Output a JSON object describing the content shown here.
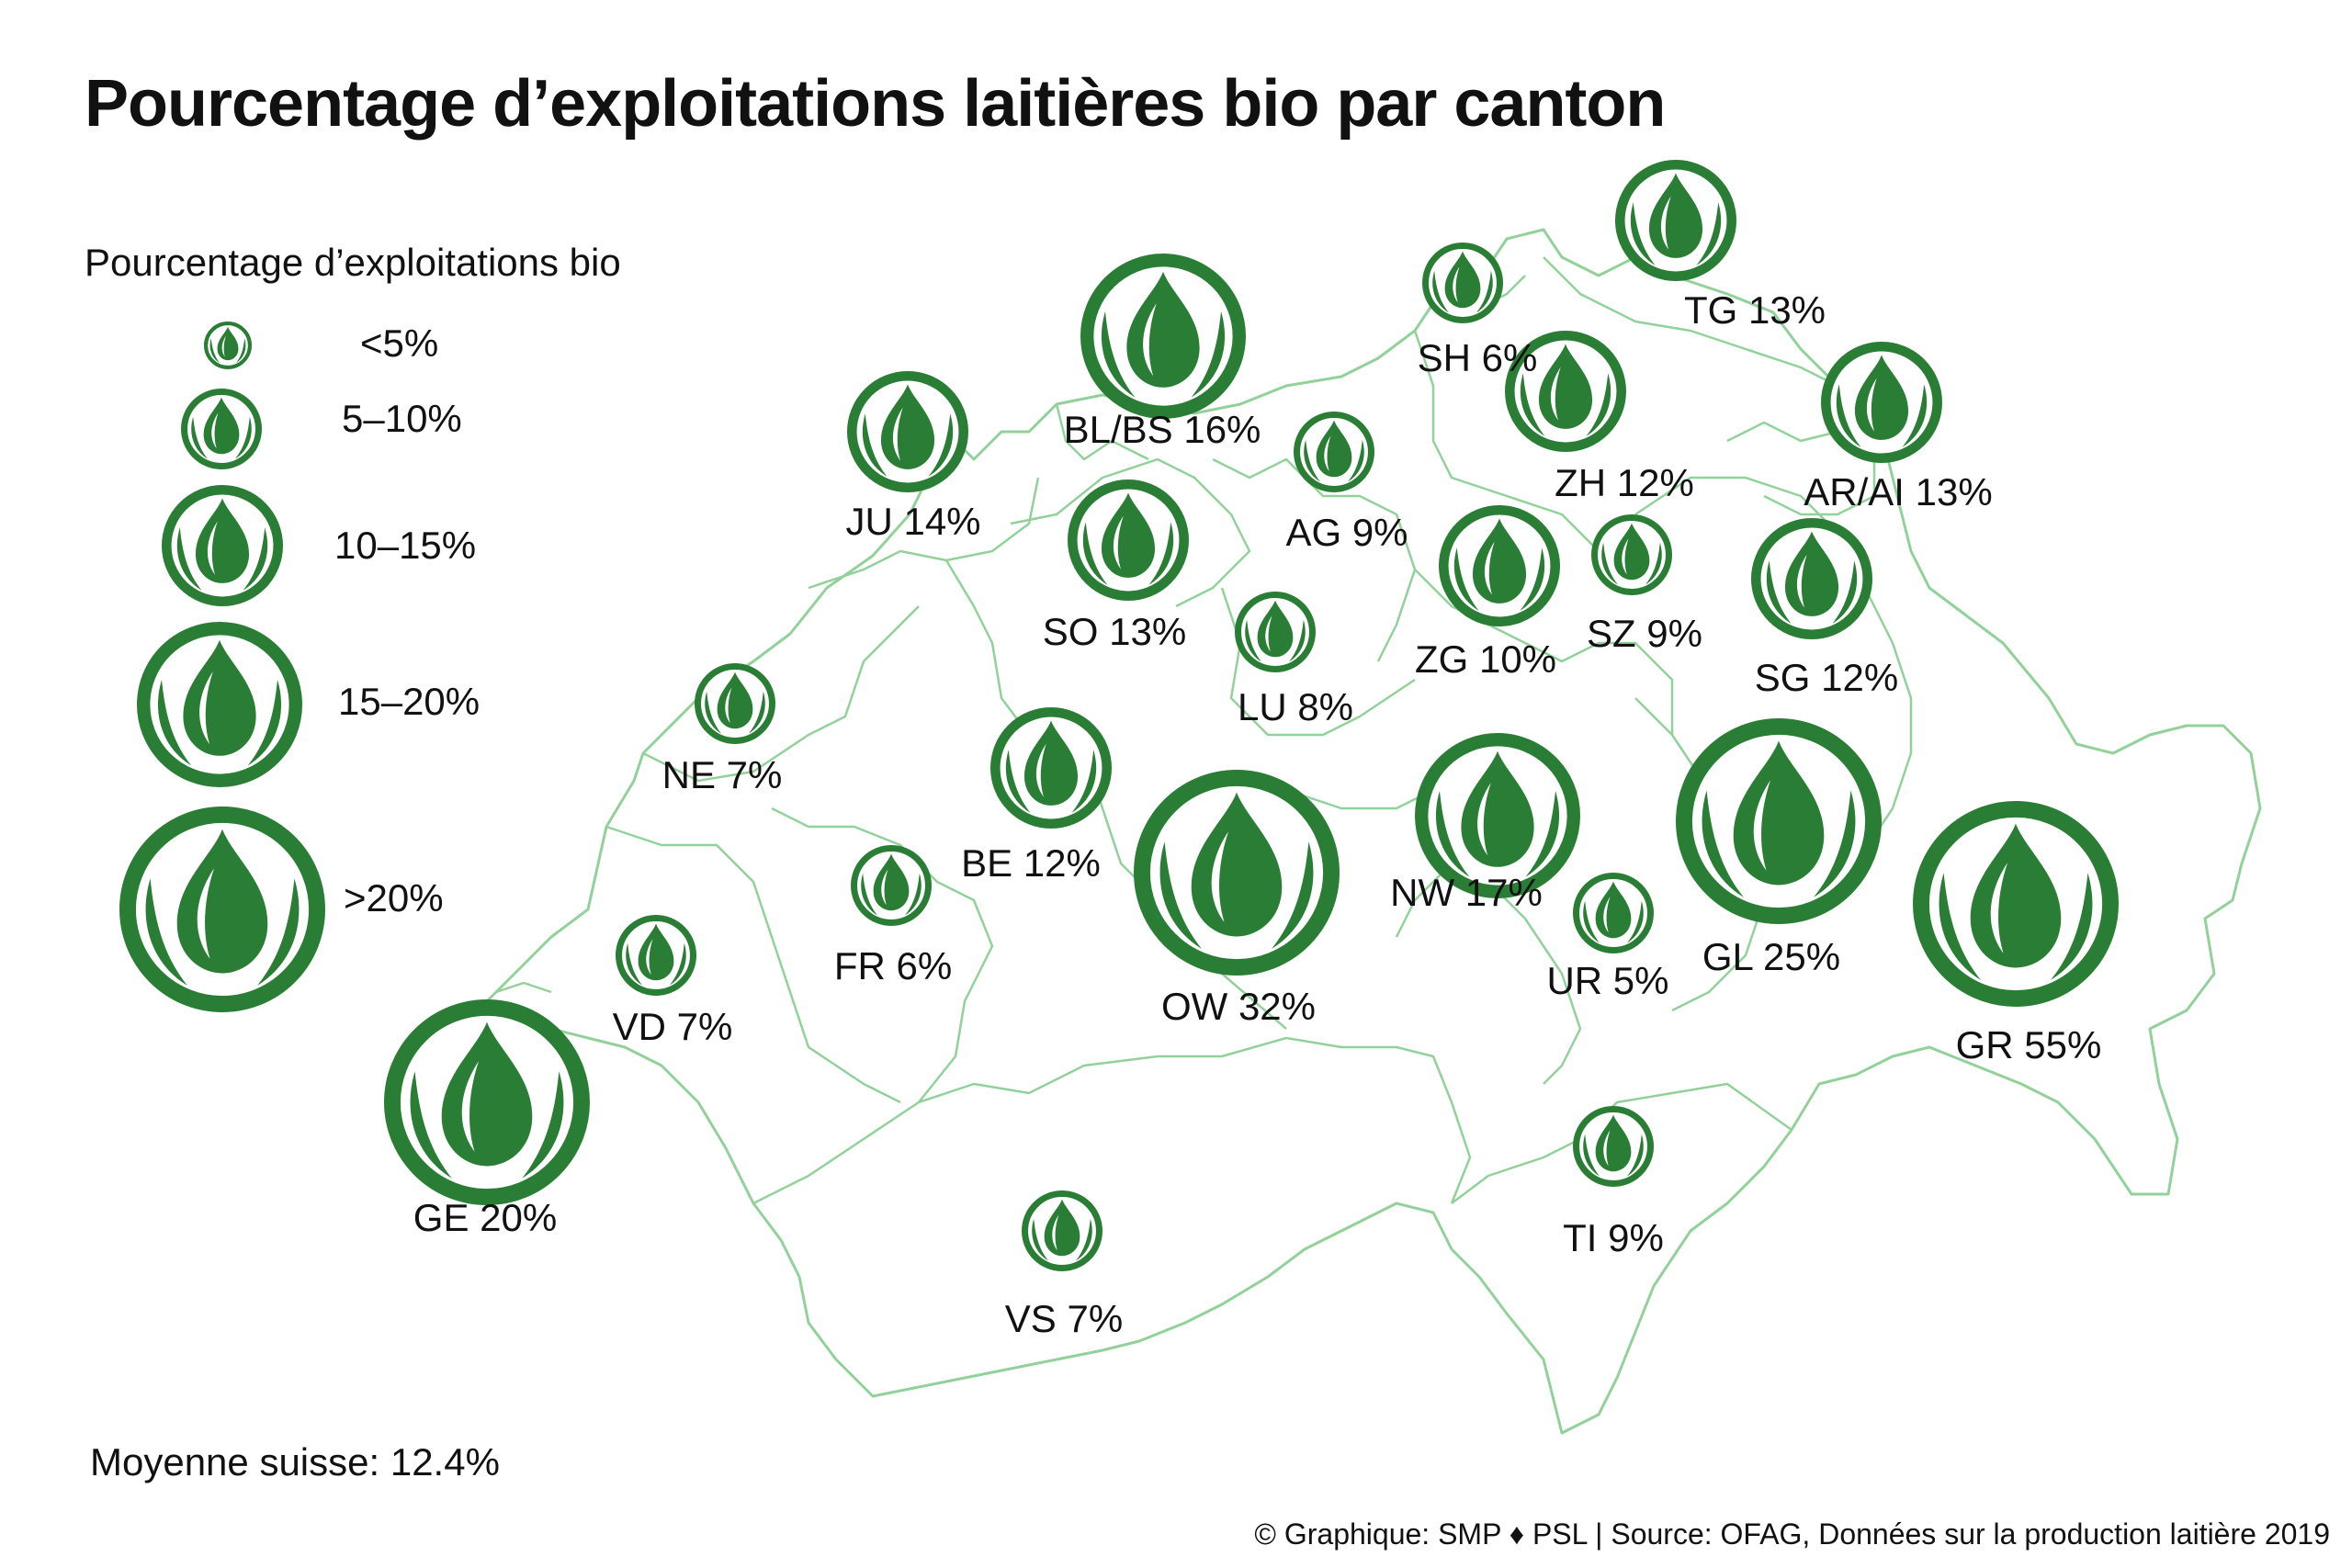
{
  "title": "Pourcentage d’exploitations laitières bio par canton",
  "legend": {
    "title": "Pourcentage d’exploitations bio",
    "classes": [
      {
        "label": "<5%",
        "size_rank": 1
      },
      {
        "label": "5–10%",
        "size_rank": 2
      },
      {
        "label": "10–15%",
        "size_rank": 3
      },
      {
        "label": "15–20%",
        "size_rank": 4
      },
      {
        "label": ">20%",
        "size_rank": 5
      }
    ]
  },
  "colors": {
    "symbol": "#2a7d34",
    "border": "#93d19b",
    "text": "#111111"
  },
  "icon": "organic-drop-icon",
  "cantons": [
    {
      "code": "TG",
      "label": "TG 13%",
      "percent": 13
    },
    {
      "code": "SH",
      "label": "SH 6%",
      "percent": 6
    },
    {
      "code": "BL/BS",
      "label": "BL/BS 16%",
      "percent": 16
    },
    {
      "code": "JU",
      "label": "JU 14%",
      "percent": 14
    },
    {
      "code": "ZH",
      "label": "ZH 12%",
      "percent": 12
    },
    {
      "code": "AR/AI",
      "label": "AR/AI 13%",
      "percent": 13
    },
    {
      "code": "AG",
      "label": "AG 9%",
      "percent": 9
    },
    {
      "code": "SO",
      "label": "SO 13%",
      "percent": 13
    },
    {
      "code": "ZG",
      "label": "ZG 10%",
      "percent": 10
    },
    {
      "code": "SZ",
      "label": "SZ 9%",
      "percent": 9
    },
    {
      "code": "SG",
      "label": "SG 12%",
      "percent": 12
    },
    {
      "code": "LU",
      "label": "LU 8%",
      "percent": 8
    },
    {
      "code": "NE",
      "label": "NE 7%",
      "percent": 7
    },
    {
      "code": "BE",
      "label": "BE 12%",
      "percent": 12
    },
    {
      "code": "NW",
      "label": "NW 17%",
      "percent": 17
    },
    {
      "code": "GL",
      "label": "GL 25%",
      "percent": 25
    },
    {
      "code": "GR",
      "label": "GR 55%",
      "percent": 55
    },
    {
      "code": "OW",
      "label": "OW 32%",
      "percent": 32
    },
    {
      "code": "UR",
      "label": "UR 5%",
      "percent": 5
    },
    {
      "code": "FR",
      "label": "FR 6%",
      "percent": 6
    },
    {
      "code": "VD",
      "label": "VD 7%",
      "percent": 7
    },
    {
      "code": "GE",
      "label": "GE 20%",
      "percent": 20
    },
    {
      "code": "TI",
      "label": "TI 9%",
      "percent": 9
    },
    {
      "code": "VS",
      "label": "VS 7%",
      "percent": 7
    }
  ],
  "average": "Moyenne suisse: 12.4%",
  "source": "© Graphique: SMP ♦ PSL | Source: OFAG, Données sur la production laitière 2019"
}
